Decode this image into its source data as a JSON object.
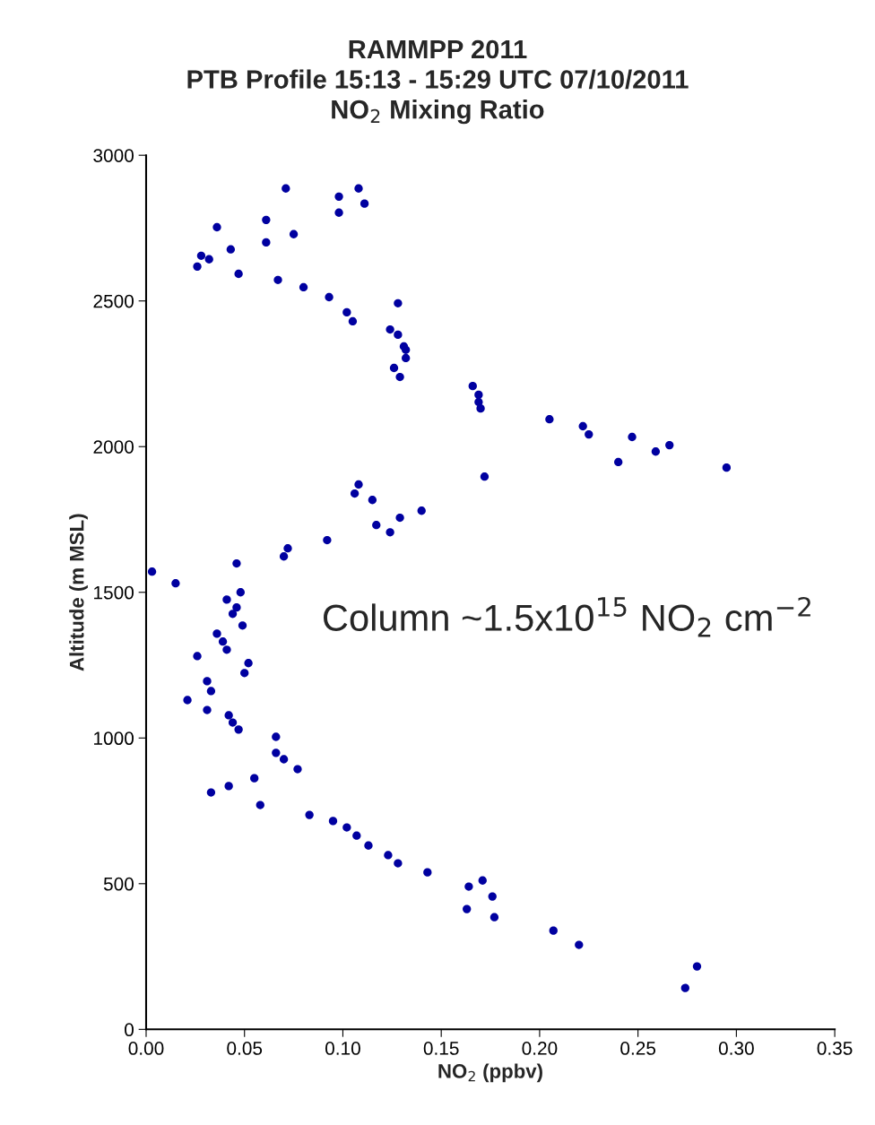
{
  "chart_data": {
    "type": "scatter",
    "title": "RAMMPP 2011\nPTB Profile 15:13 - 15:29 UTC 07/10/2011\nNO$_{2}$ Mixing Ratio",
    "xlabel": "NO$_{2}$ (ppbv)",
    "ylabel": "Altitude (m MSL)",
    "annotations": [
      "Column ~1.5x10$^{15}$ NO$_{2}$ cm$^{−2}$"
    ],
    "x": [
      0.071,
      0.108,
      0.098,
      0.111,
      0.098,
      0.036,
      0.061,
      0.075,
      0.043,
      0.061,
      0.028,
      0.032,
      0.026,
      0.047,
      0.067,
      0.08,
      0.093,
      0.128,
      0.102,
      0.105,
      0.124,
      0.128,
      0.131,
      0.132,
      0.132,
      0.126,
      0.129,
      0.166,
      0.169,
      0.169,
      0.17,
      0.205,
      0.222,
      0.225,
      0.247,
      0.266,
      0.259,
      0.24,
      0.295,
      0.172,
      0.108,
      0.106,
      0.115,
      0.14,
      0.129,
      0.117,
      0.124,
      0.092,
      0.072,
      0.07,
      0.003,
      0.046,
      0.015,
      0.048,
      0.041,
      0.046,
      0.044,
      0.049,
      0.036,
      0.039,
      0.041,
      0.026,
      0.052,
      0.05,
      0.031,
      0.033,
      0.021,
      0.031,
      0.042,
      0.044,
      0.047,
      0.066,
      0.066,
      0.07,
      0.077,
      0.055,
      0.042,
      0.033,
      0.058,
      0.083,
      0.095,
      0.102,
      0.107,
      0.113,
      0.123,
      0.128,
      0.143,
      0.164,
      0.171,
      0.176,
      0.163,
      0.177,
      0.207,
      0.22,
      0.28,
      0.274
    ],
    "series": [
      {
        "color": "#0000a0",
        "values": [
          2886,
          2886,
          2858,
          2834,
          2803,
          2753,
          2778,
          2729,
          2677,
          2701,
          2655,
          2643,
          2618,
          2593,
          2572,
          2547,
          2513,
          2492,
          2461,
          2430,
          2402,
          2384,
          2344,
          2332,
          2304,
          2270,
          2239,
          2208,
          2178,
          2153,
          2131,
          2094,
          2070,
          2042,
          2033,
          2005,
          1983,
          1947,
          1928,
          1897,
          1870,
          1839,
          1817,
          1780,
          1756,
          1731,
          1706,
          1679,
          1651,
          1623,
          1571,
          1599,
          1531,
          1500,
          1475,
          1448,
          1426,
          1386,
          1358,
          1331,
          1303,
          1281,
          1257,
          1223,
          1195,
          1161,
          1130,
          1096,
          1078,
          1053,
          1029,
          1004,
          949,
          927,
          893,
          862,
          835,
          813,
          770,
          736,
          715,
          693,
          665,
          631,
          598,
          570,
          539,
          490,
          511,
          456,
          413,
          385,
          339,
          290,
          216,
          142
        ]
      }
    ],
    "xlim": [
      0,
      0.35
    ],
    "xticks": [
      {
        "value": 0,
        "label": "0.00"
      },
      {
        "value": 0.05,
        "label": "0.05"
      },
      {
        "value": 0.1,
        "label": "0.10"
      },
      {
        "value": 0.15,
        "label": "0.15"
      },
      {
        "value": 0.2,
        "label": "0.20"
      },
      {
        "value": 0.25,
        "label": "0.25"
      },
      {
        "value": 0.3,
        "label": "0.30"
      },
      {
        "value": 0.35,
        "label": "0.35"
      }
    ],
    "ylim": [
      0,
      3000
    ],
    "yticks": [
      0,
      500,
      1000,
      1500,
      2000,
      2500,
      3000
    ],
    "marker": "circle",
    "grid": false,
    "legend": false
  }
}
